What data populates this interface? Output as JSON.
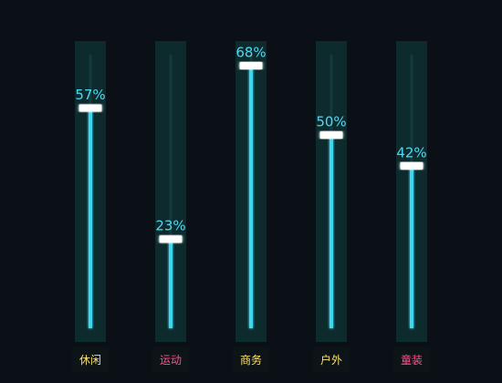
{
  "chart_data": {
    "type": "bar",
    "categories": [
      "休闲",
      "运动",
      "商务",
      "户外",
      "童装"
    ],
    "values": [
      57,
      23,
      68,
      50,
      42
    ],
    "value_labels": [
      "57%",
      "23%",
      "68%",
      "50%",
      "42%"
    ],
    "unit": "%",
    "ylim": [
      0,
      70
    ],
    "grid": false,
    "legend": "none",
    "category_label_colors": [
      "#ffe26a",
      "#ff4f8b",
      "#ffe26a",
      "#ffe26a",
      "#ff4f8b"
    ]
  },
  "colors": {
    "background": "#0a1016",
    "column_background": "#0d2a2d",
    "bar": "#3fd6f0",
    "marker": "#ffffff",
    "value_text": "#4fd8f5",
    "label_background": "#0c1418"
  }
}
